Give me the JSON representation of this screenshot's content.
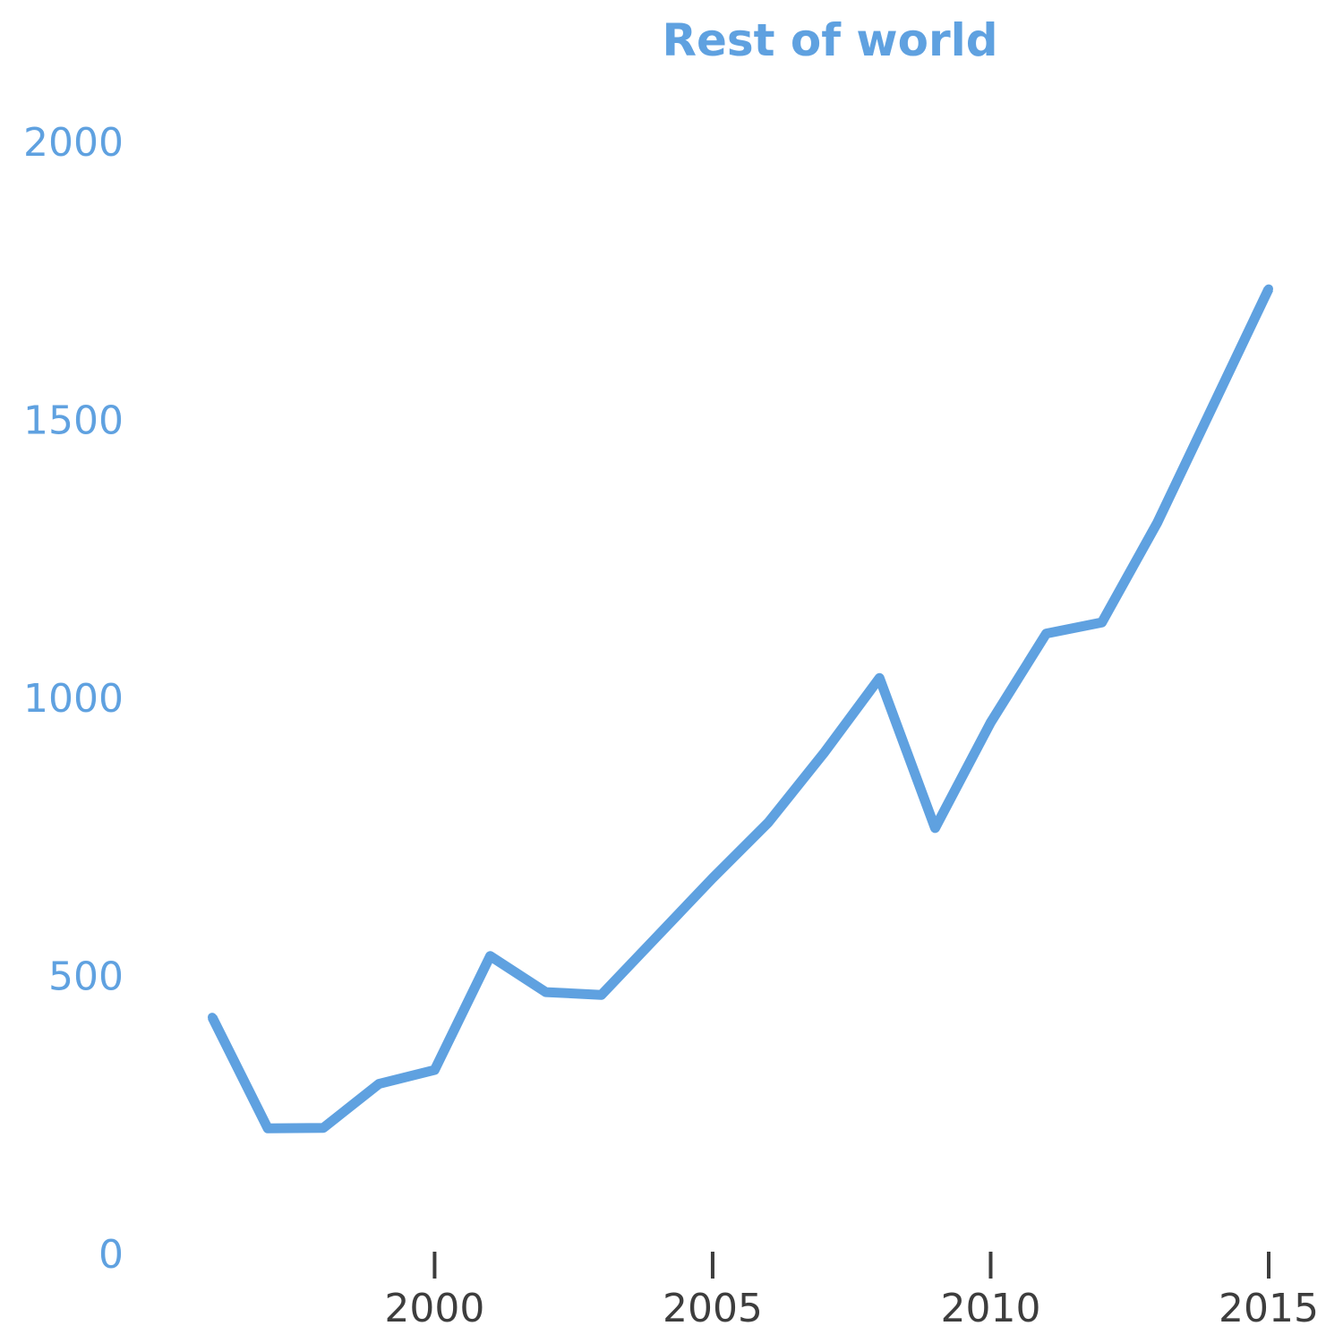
{
  "chart_data": {
    "type": "line",
    "title": "Rest of world",
    "xlabel": "",
    "ylabel": "",
    "x": [
      1996,
      1997,
      1998,
      1999,
      2000,
      2001,
      2002,
      2003,
      2004,
      2005,
      2006,
      2007,
      2008,
      2009,
      2010,
      2011,
      2012,
      2013,
      2014,
      2015
    ],
    "series": [
      {
        "values": [
          425,
          225,
          226,
          305,
          330,
          535,
          470,
          465,
          570,
          675,
          775,
          900,
          1035,
          765,
          955,
          1115,
          1135,
          1315,
          1525,
          1735
        ]
      }
    ],
    "xlim": [
      1996,
      2015
    ],
    "ylim": [
      0,
      2000
    ],
    "yticks": [
      "0",
      "500",
      "1000",
      "1500",
      "2000"
    ],
    "xticks": [
      "2000",
      "2005",
      "2010",
      "2015"
    ],
    "grid": false,
    "colors": {
      "series": "#5fa1e0",
      "ytick": "#5fa1e0",
      "xtick": "#3d3d3d",
      "title": "#5fa1e0"
    }
  }
}
